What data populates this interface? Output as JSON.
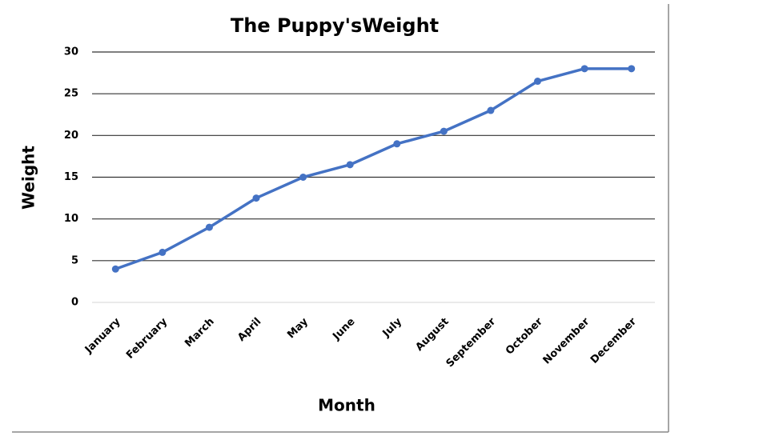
{
  "chart_data": {
    "type": "line",
    "title": "The Puppy'sWeight",
    "x_label": "Month",
    "y_label": "Weight",
    "categories": [
      "January",
      "February",
      "March",
      "April",
      "May",
      "June",
      "July",
      "August",
      "September",
      "October",
      "November",
      "December"
    ],
    "series": [
      {
        "name": "Weight",
        "color": "#4472c4",
        "values": [
          4,
          6,
          9,
          12.5,
          15,
          16.5,
          19,
          20.5,
          23,
          26.5,
          28,
          28
        ]
      }
    ],
    "ylim": [
      0,
      30
    ],
    "yticks": [
      0,
      5,
      10,
      15,
      20,
      25,
      30
    ],
    "grid": true
  }
}
